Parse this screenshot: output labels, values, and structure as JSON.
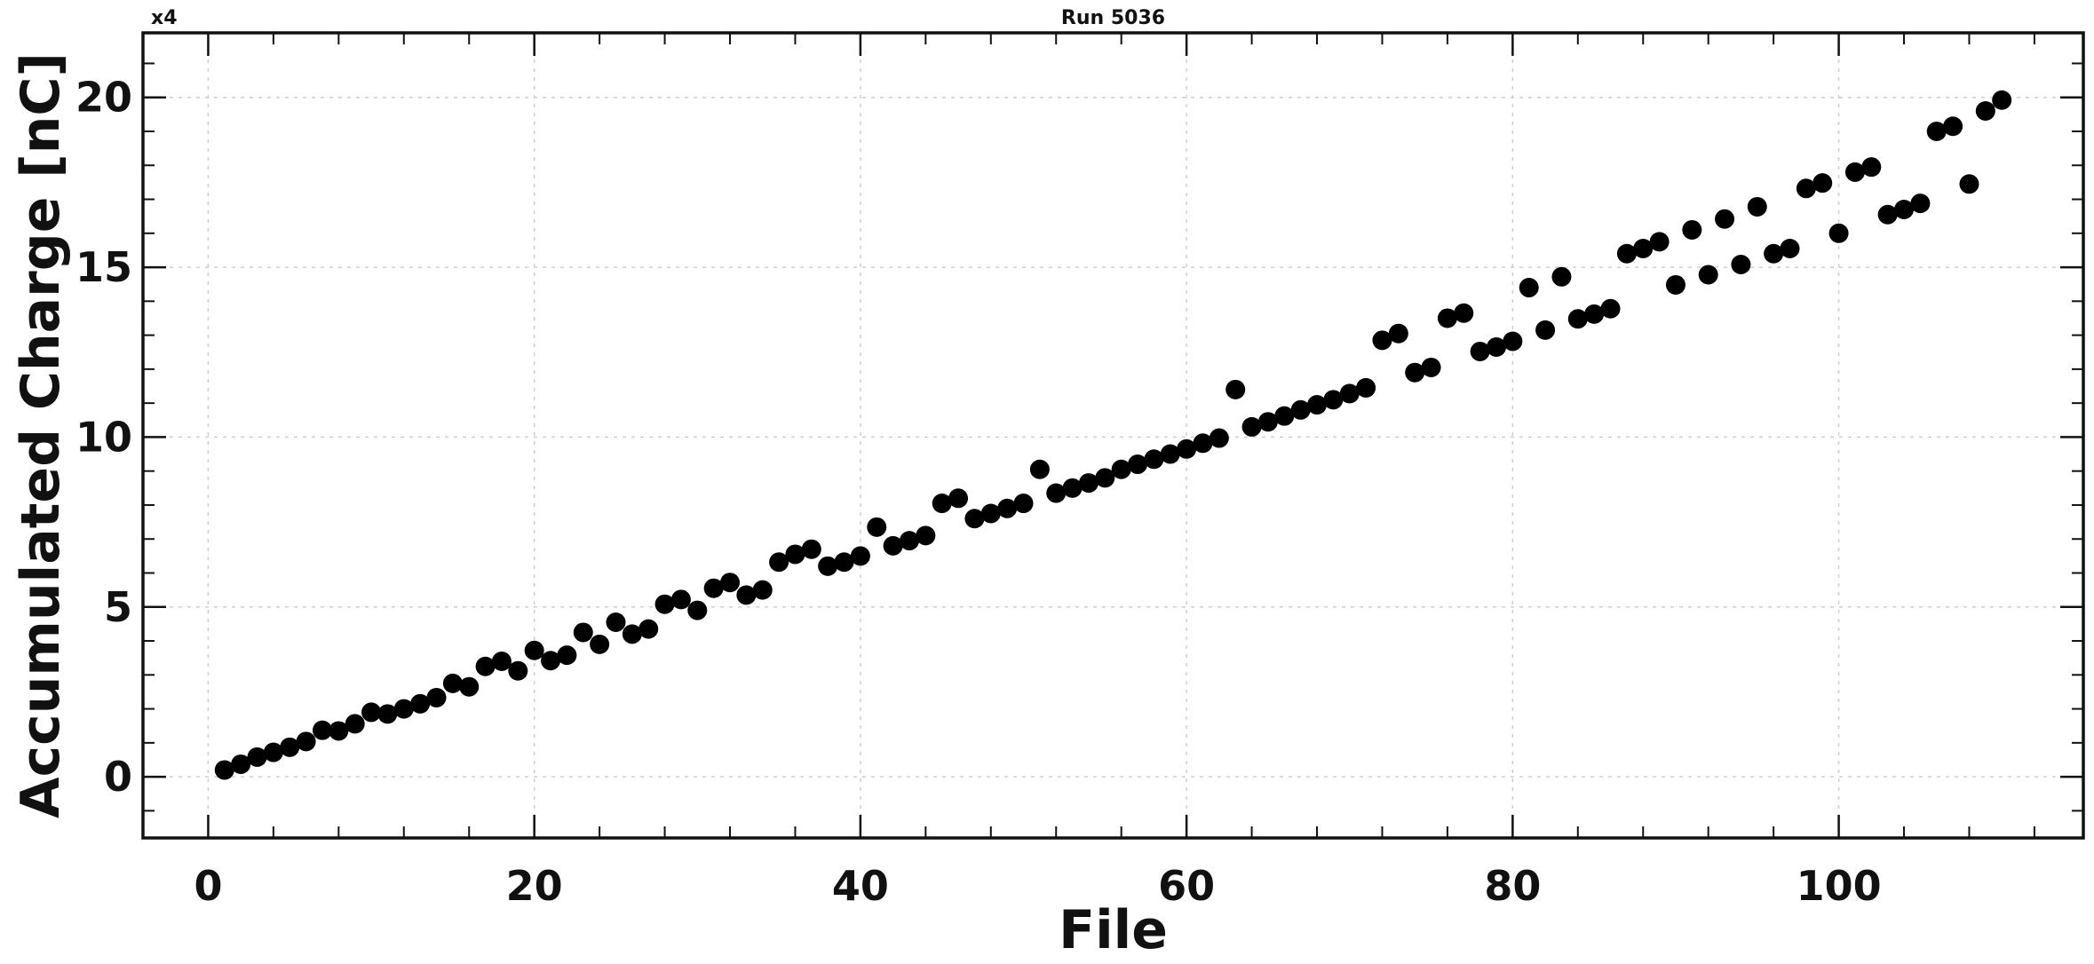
{
  "chart_data": {
    "type": "scatter",
    "title": "Run 5036",
    "multiplier_label": "x4",
    "xlabel": "File",
    "ylabel": "Accumulated Charge [nC]",
    "xlim": [
      -4,
      115
    ],
    "ylim": [
      -1.8,
      21.9
    ],
    "xticks": [
      0,
      20,
      40,
      60,
      80,
      100
    ],
    "xtick_labels": [
      "0",
      "20",
      "40",
      "60",
      "80",
      "100"
    ],
    "yticks": [
      0,
      5,
      10,
      15,
      20
    ],
    "ytick_labels": [
      "0",
      "5",
      "10",
      "15",
      "20"
    ],
    "grid": true,
    "marker_color": "#000000",
    "x": [
      1,
      2,
      3,
      4,
      5,
      6,
      7,
      8,
      9,
      10,
      11,
      12,
      13,
      14,
      15,
      16,
      17,
      18,
      19,
      20,
      21,
      22,
      23,
      24,
      25,
      26,
      27,
      28,
      29,
      30,
      31,
      32,
      33,
      34,
      35,
      36,
      37,
      38,
      39,
      40,
      41,
      42,
      43,
      44,
      45,
      46,
      47,
      48,
      49,
      50,
      51,
      52,
      53,
      54,
      55,
      56,
      57,
      58,
      59,
      60,
      61,
      62,
      63,
      64,
      65,
      66,
      67,
      68,
      69,
      70,
      71,
      72,
      73,
      74,
      75,
      76,
      77,
      78,
      79,
      80,
      81,
      82,
      83,
      84,
      85,
      86,
      87,
      88,
      89,
      90,
      91,
      92,
      93,
      94,
      95,
      96,
      97,
      98,
      99,
      100,
      101,
      102,
      103,
      104,
      105,
      106,
      107,
      108,
      109,
      110
    ],
    "y": [
      0.2,
      0.37,
      0.58,
      0.72,
      0.87,
      1.04,
      1.37,
      1.35,
      1.56,
      1.9,
      1.85,
      2.0,
      2.15,
      2.33,
      2.75,
      2.65,
      3.25,
      3.4,
      3.12,
      3.72,
      3.42,
      3.58,
      4.25,
      3.9,
      4.55,
      4.2,
      4.35,
      5.08,
      5.22,
      4.9,
      5.55,
      5.72,
      5.35,
      5.5,
      6.32,
      6.55,
      6.7,
      6.2,
      6.32,
      6.5,
      7.35,
      6.8,
      6.95,
      7.1,
      8.05,
      8.2,
      7.6,
      7.75,
      7.9,
      8.05,
      9.05,
      8.35,
      8.5,
      8.65,
      8.8,
      9.05,
      9.2,
      9.35,
      9.5,
      9.65,
      9.82,
      9.97,
      11.4,
      10.3,
      10.45,
      10.62,
      10.8,
      10.95,
      11.1,
      11.28,
      11.45,
      12.85,
      13.05,
      11.9,
      12.05,
      13.5,
      13.65,
      12.52,
      12.65,
      12.82,
      14.4,
      13.15,
      14.72,
      13.48,
      13.62,
      13.78,
      15.4,
      15.55,
      15.75,
      14.48,
      16.1,
      14.78,
      16.42,
      15.08,
      16.78,
      15.4,
      15.55,
      17.32,
      17.48,
      16.0,
      17.8,
      17.95,
      16.55,
      16.7,
      16.88,
      19.0,
      19.15,
      17.45,
      19.6,
      19.92
    ]
  }
}
